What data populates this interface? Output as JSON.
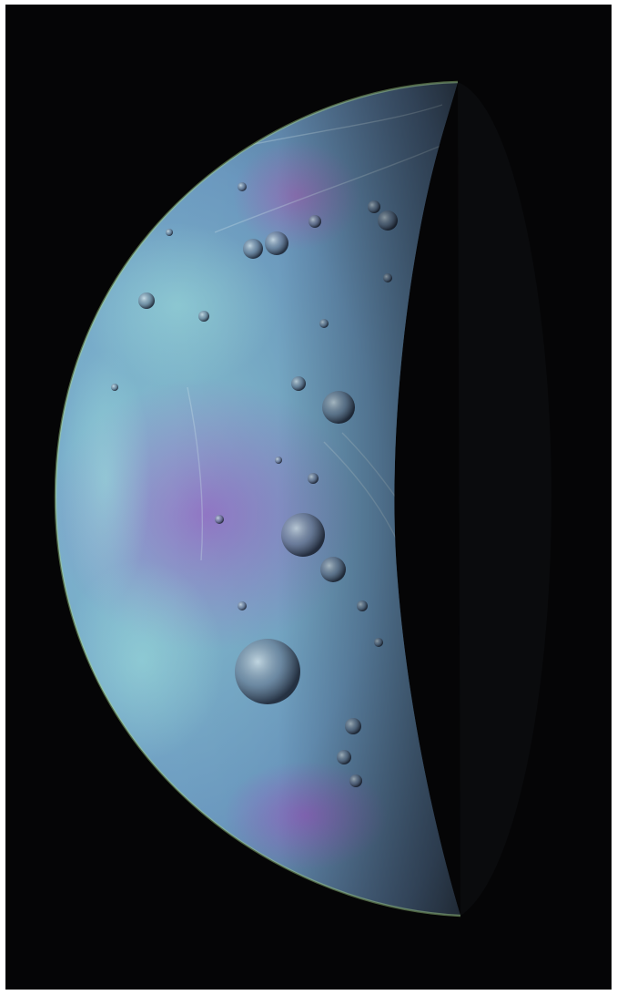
{
  "image": {
    "subject": "crescent-moon",
    "phase": "half-lit-left",
    "colors": {
      "frame": "#ffffff",
      "space": "#050506",
      "surface_cyan": "#7fc6cf",
      "surface_blue": "#5f7fb8",
      "surface_purple": "#8a62b8",
      "limb_green": "#a7d48a",
      "terminator_dark": "#1c1e22"
    }
  }
}
